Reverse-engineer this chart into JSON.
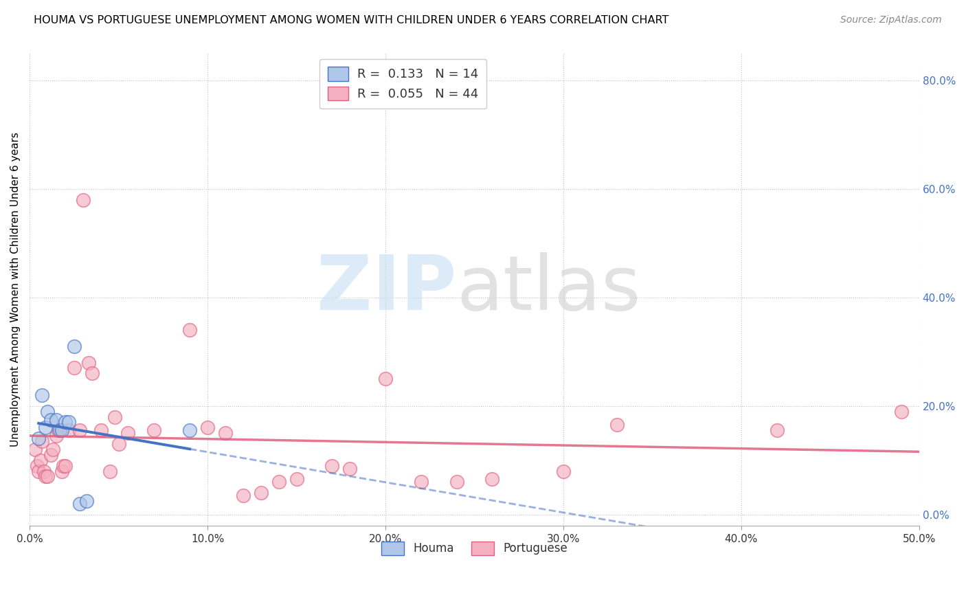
{
  "title": "HOUMA VS PORTUGUESE UNEMPLOYMENT AMONG WOMEN WITH CHILDREN UNDER 6 YEARS CORRELATION CHART",
  "source": "Source: ZipAtlas.com",
  "ylabel": "Unemployment Among Women with Children Under 6 years",
  "xlim": [
    0.0,
    0.5
  ],
  "ylim": [
    -0.02,
    0.85
  ],
  "houma_R": 0.133,
  "houma_N": 14,
  "portuguese_R": 0.055,
  "portuguese_N": 44,
  "houma_color": "#aec6e8",
  "houma_line_color": "#4472c4",
  "portuguese_color": "#f4afc0",
  "portuguese_line_color": "#e06080",
  "houma_points": [
    [
      0.005,
      0.14
    ],
    [
      0.007,
      0.22
    ],
    [
      0.009,
      0.16
    ],
    [
      0.01,
      0.19
    ],
    [
      0.012,
      0.175
    ],
    [
      0.015,
      0.175
    ],
    [
      0.017,
      0.155
    ],
    [
      0.018,
      0.155
    ],
    [
      0.02,
      0.17
    ],
    [
      0.022,
      0.17
    ],
    [
      0.025,
      0.31
    ],
    [
      0.028,
      0.02
    ],
    [
      0.032,
      0.025
    ],
    [
      0.09,
      0.155
    ]
  ],
  "portuguese_points": [
    [
      0.003,
      0.12
    ],
    [
      0.004,
      0.09
    ],
    [
      0.005,
      0.08
    ],
    [
      0.006,
      0.1
    ],
    [
      0.007,
      0.135
    ],
    [
      0.008,
      0.08
    ],
    [
      0.009,
      0.07
    ],
    [
      0.01,
      0.07
    ],
    [
      0.012,
      0.11
    ],
    [
      0.013,
      0.12
    ],
    [
      0.015,
      0.145
    ],
    [
      0.016,
      0.155
    ],
    [
      0.018,
      0.08
    ],
    [
      0.019,
      0.09
    ],
    [
      0.02,
      0.09
    ],
    [
      0.022,
      0.155
    ],
    [
      0.025,
      0.27
    ],
    [
      0.028,
      0.155
    ],
    [
      0.03,
      0.58
    ],
    [
      0.033,
      0.28
    ],
    [
      0.035,
      0.26
    ],
    [
      0.04,
      0.155
    ],
    [
      0.045,
      0.08
    ],
    [
      0.048,
      0.18
    ],
    [
      0.05,
      0.13
    ],
    [
      0.055,
      0.15
    ],
    [
      0.07,
      0.155
    ],
    [
      0.09,
      0.34
    ],
    [
      0.1,
      0.16
    ],
    [
      0.11,
      0.15
    ],
    [
      0.12,
      0.035
    ],
    [
      0.13,
      0.04
    ],
    [
      0.14,
      0.06
    ],
    [
      0.15,
      0.065
    ],
    [
      0.17,
      0.09
    ],
    [
      0.18,
      0.085
    ],
    [
      0.2,
      0.25
    ],
    [
      0.22,
      0.06
    ],
    [
      0.24,
      0.06
    ],
    [
      0.26,
      0.065
    ],
    [
      0.3,
      0.08
    ],
    [
      0.33,
      0.165
    ],
    [
      0.42,
      0.155
    ],
    [
      0.49,
      0.19
    ]
  ]
}
